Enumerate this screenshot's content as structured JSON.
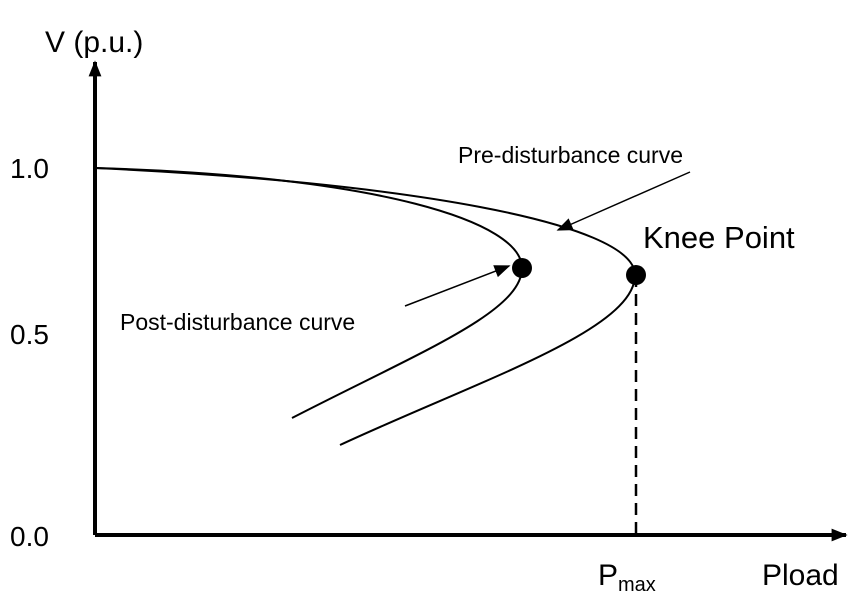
{
  "axes": {
    "y_label": "V (p.u.)",
    "x_label": "Pload",
    "y_ticks": [
      "1.0",
      "0.5",
      "0.0"
    ],
    "x_marker": {
      "main": "P",
      "sub": "max"
    }
  },
  "annotations": {
    "pre": "Pre-disturbance curve",
    "post": "Post-disturbance curve",
    "knee": "Knee Point"
  }
}
